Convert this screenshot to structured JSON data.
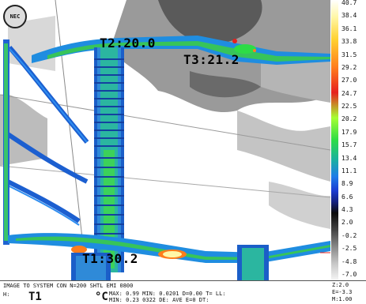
{
  "thermal": {
    "labels": [
      {
        "key": "T2",
        "text": "T2:20.0"
      },
      {
        "key": "T3",
        "text": "T3:21.2"
      },
      {
        "key": "T1",
        "text": "T1:30.2"
      }
    ],
    "logo_text": "NEC"
  },
  "scale": {
    "ticks": [
      "40.7",
      "38.4",
      "36.1",
      "33.8",
      "31.5",
      "29.2",
      "27.0",
      "24.7",
      "22.5",
      "20.2",
      "17.9",
      "15.7",
      "13.4",
      "11.1",
      "8.9",
      "6.6",
      "4.3",
      "2.0",
      "-0.2",
      "-2.5",
      "-4.8",
      "-7.0"
    ]
  },
  "status": {
    "line1": "IMAGE TO SYSTEM CON  N=200  SHTL  EMI 0800",
    "p1": "H:",
    "t1": "T1",
    "c": "°C",
    "d1": "MAX: 0.99 MIN: 0.0201  D=0.00  T=  LL:",
    "d2": "MIN: 0.23  0322  DE:  AVE  E=0  DT:",
    "right": [
      "Z:2.0",
      "E=-3.3",
      "M:1.00"
    ]
  }
}
